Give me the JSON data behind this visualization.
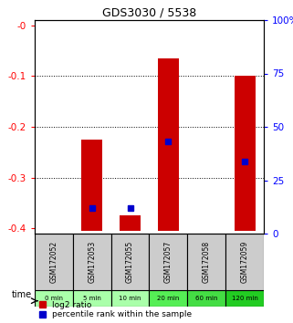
{
  "title": "GDS3030 / 5538",
  "samples": [
    "GSM172052",
    "GSM172053",
    "GSM172055",
    "GSM172057",
    "GSM172058",
    "GSM172059"
  ],
  "time_labels": [
    "0 min",
    "5 min",
    "10 min",
    "20 min",
    "60 min",
    "120 min"
  ],
  "time_colors": [
    "#aaffaa",
    "#aaffaa",
    "#aaffaa",
    "#55ee55",
    "#44dd44",
    "#22cc22"
  ],
  "log2_top": [
    0.0,
    -0.225,
    -0.375,
    -0.065,
    0.0,
    -0.1
  ],
  "log2_bottom": [
    0.0,
    -0.405,
    -0.405,
    -0.405,
    0.0,
    -0.405
  ],
  "percentile_values": [
    null,
    10,
    10,
    43,
    null,
    33
  ],
  "ylim_left": [
    -0.41,
    0.01
  ],
  "bar_color": "#cc0000",
  "blue_color": "#0000cc",
  "bar_width": 0.55,
  "header_color": "#cccccc",
  "legend_red_label": "log2 ratio",
  "legend_blue_label": "percentile rank within the sample",
  "yticks_left": [
    -0.4,
    -0.3,
    -0.2,
    -0.1,
    0.0
  ],
  "ytick_labels_left": [
    "-0.4",
    "-0.3",
    "-0.2",
    "-0.1",
    "-0"
  ],
  "yticks_right": [
    0,
    25,
    50,
    75,
    100
  ],
  "ytick_labels_right": [
    "0",
    "25",
    "50",
    "75",
    "100%"
  ]
}
